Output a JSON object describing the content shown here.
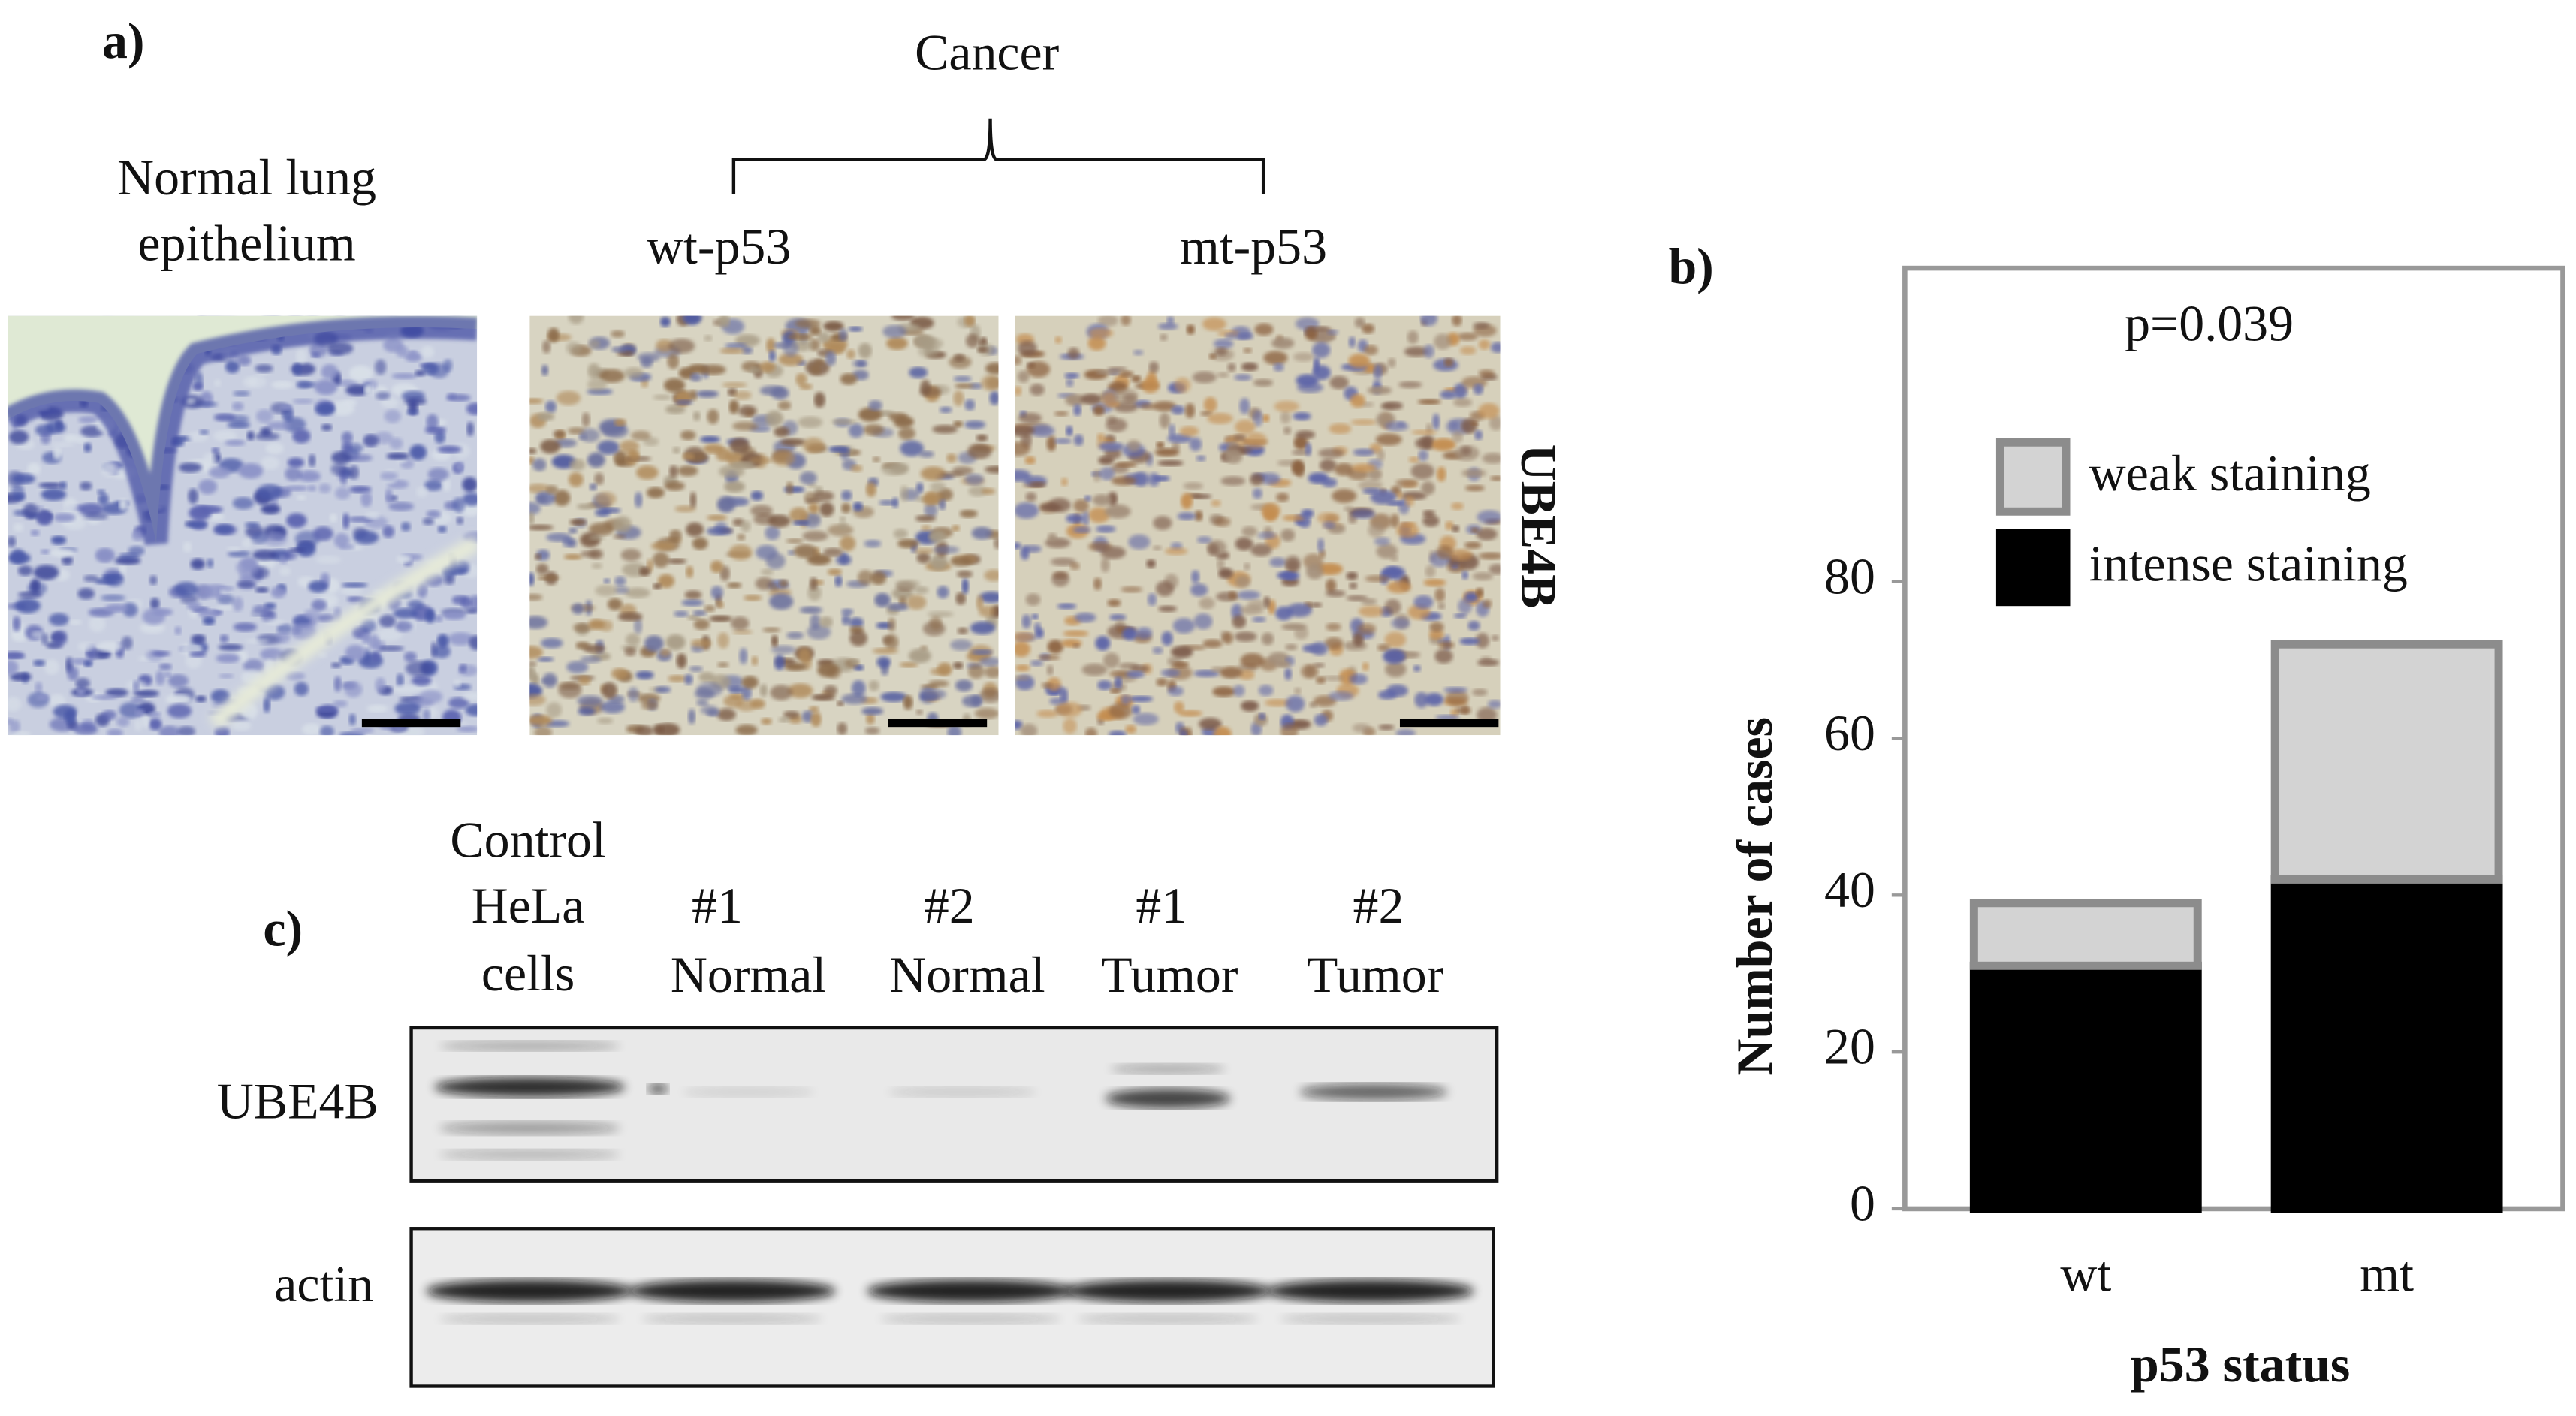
{
  "panel_a": {
    "label": "a)",
    "group_label": "Cancer",
    "images": [
      {
        "lines": [
          "Normal lung",
          "epithelium"
        ]
      },
      {
        "lines": [
          "wt-p53"
        ]
      },
      {
        "lines": [
          "mt-p53"
        ]
      }
    ],
    "stain": "UBE4B"
  },
  "chart_data": {
    "type": "stacked-bar",
    "panel_label": "b)",
    "annotation": "p=0.039",
    "x_label": "p53 status",
    "y_label": "Number of cases",
    "categories": [
      "wt",
      "mt"
    ],
    "series": [
      {
        "name": "intense staining",
        "color": "#000000",
        "values": [
          31,
          42
        ]
      },
      {
        "name": "weak staining",
        "color": "#d3d3d3",
        "values": [
          8,
          30
        ]
      }
    ],
    "ylim": [
      0,
      120
    ],
    "yticks": [
      0,
      20,
      40,
      60,
      80
    ]
  },
  "panel_c": {
    "label": "c)",
    "lanes": [
      [
        "Control",
        "HeLa",
        "cells"
      ],
      [
        "#1",
        "Normal"
      ],
      [
        "#2",
        "Normal"
      ],
      [
        "#1",
        "Tumor"
      ],
      [
        "#2",
        "Tumor"
      ]
    ],
    "rows": [
      "UBE4B",
      "actin"
    ]
  }
}
